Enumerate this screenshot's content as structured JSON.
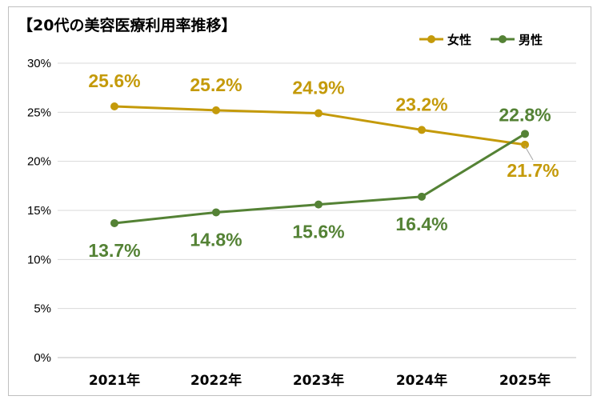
{
  "chart_data": {
    "type": "line",
    "title": "【20代の美容医療利用率推移】",
    "categories": [
      "2021年",
      "2022年",
      "2023年",
      "2024年",
      "2025年"
    ],
    "series": [
      {
        "name": "女性",
        "values": [
          25.6,
          25.2,
          24.9,
          23.2,
          21.7
        ],
        "color": "#C49A0A"
      },
      {
        "name": "男性",
        "values": [
          13.7,
          14.8,
          15.6,
          16.4,
          22.8
        ],
        "color": "#548235"
      }
    ],
    "data_labels": [
      [
        "25.6%",
        "25.2%",
        "24.9%",
        "23.2%",
        "21.7%"
      ],
      [
        "13.7%",
        "14.8%",
        "15.6%",
        "16.4%",
        "22.8%"
      ]
    ],
    "yticks": [
      "0%",
      "5%",
      "10%",
      "15%",
      "20%",
      "25%",
      "30%"
    ],
    "ylim": [
      0,
      30
    ],
    "grid": true,
    "legend_position": "top-right"
  }
}
